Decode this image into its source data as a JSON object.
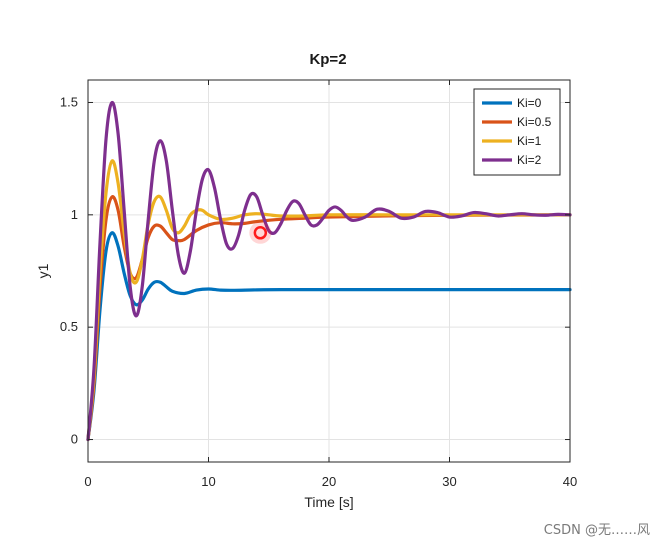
{
  "chart_data": {
    "type": "line",
    "title": "Kp=2",
    "xlabel": "Time [s]",
    "ylabel": "y1",
    "xlim": [
      0,
      40
    ],
    "ylim": [
      -0.1,
      1.6
    ],
    "xticks": [
      0,
      10,
      20,
      30,
      40
    ],
    "yticks": [
      0,
      0.5,
      1,
      1.5
    ],
    "xtick_labels": [
      "0",
      "10",
      "20",
      "30",
      "40"
    ],
    "ytick_labels": [
      "0",
      "0.5",
      "1",
      "1.5"
    ],
    "grid": true,
    "legend_position": "top-right",
    "marker_point": {
      "x": 14.3,
      "y": 0.92,
      "color": "#ff1a1a"
    },
    "series": [
      {
        "name": "Ki=0",
        "color": "#0072bd",
        "x": [
          0,
          0.5,
          1,
          1.5,
          2,
          2.5,
          3,
          3.5,
          4,
          4.5,
          5,
          5.5,
          6,
          6.5,
          7,
          8,
          9,
          10,
          11,
          12,
          14,
          16,
          20,
          25,
          30,
          35,
          40
        ],
        "y": [
          0,
          0.22,
          0.58,
          0.84,
          0.92,
          0.86,
          0.74,
          0.64,
          0.6,
          0.62,
          0.67,
          0.7,
          0.7,
          0.68,
          0.66,
          0.65,
          0.665,
          0.67,
          0.665,
          0.664,
          0.666,
          0.667,
          0.667,
          0.667,
          0.667,
          0.667,
          0.667
        ]
      },
      {
        "name": "Ki=0.5",
        "color": "#d95319",
        "x": [
          0,
          0.5,
          1,
          1.5,
          2,
          2.5,
          3,
          3.5,
          4,
          4.5,
          5,
          5.5,
          6,
          6.5,
          7,
          7.5,
          8,
          9,
          10,
          11,
          12,
          13,
          14,
          16,
          18,
          20,
          25,
          30,
          35,
          40
        ],
        "y": [
          0,
          0.25,
          0.68,
          0.98,
          1.08,
          1.02,
          0.86,
          0.74,
          0.72,
          0.8,
          0.9,
          0.95,
          0.95,
          0.92,
          0.89,
          0.885,
          0.89,
          0.93,
          0.955,
          0.965,
          0.96,
          0.962,
          0.97,
          0.98,
          0.985,
          0.99,
          0.995,
          0.998,
          0.999,
          1.0
        ]
      },
      {
        "name": "Ki=1",
        "color": "#edb120",
        "x": [
          0,
          0.5,
          1,
          1.5,
          2,
          2.5,
          3,
          3.5,
          4,
          4.5,
          5,
          5.5,
          6,
          6.5,
          7,
          7.5,
          8,
          8.5,
          9,
          9.5,
          10,
          11,
          12,
          13,
          14,
          15,
          16,
          18,
          20,
          25,
          30,
          35,
          40
        ],
        "y": [
          0,
          0.28,
          0.75,
          1.1,
          1.24,
          1.14,
          0.92,
          0.74,
          0.7,
          0.8,
          0.96,
          1.06,
          1.08,
          1.02,
          0.94,
          0.92,
          0.95,
          1.0,
          1.02,
          1.02,
          1.0,
          0.98,
          0.985,
          1.0,
          1.005,
          1.0,
          0.995,
          0.995,
          1.0,
          1.0,
          1.0,
          1.0,
          1.0
        ]
      },
      {
        "name": "Ki=2",
        "color": "#7e2f8e",
        "x": [
          0,
          0.5,
          1,
          1.5,
          2,
          2.5,
          3,
          3.5,
          4,
          4.5,
          5,
          5.5,
          6,
          6.5,
          7,
          7.5,
          8,
          8.5,
          9,
          9.5,
          10,
          10.5,
          11,
          11.5,
          12,
          12.5,
          13,
          13.5,
          14,
          14.5,
          15,
          15.5,
          16,
          16.5,
          17,
          17.5,
          18,
          18.5,
          19,
          19.5,
          20,
          20.5,
          21,
          21.5,
          22,
          23,
          24,
          25,
          26,
          27,
          28,
          29,
          30,
          31,
          32,
          33,
          34,
          35,
          36,
          37,
          38,
          39,
          40
        ],
        "y": [
          0,
          0.32,
          0.88,
          1.34,
          1.5,
          1.36,
          1.02,
          0.68,
          0.55,
          0.68,
          0.98,
          1.24,
          1.33,
          1.24,
          1.02,
          0.82,
          0.74,
          0.84,
          1.02,
          1.16,
          1.2,
          1.12,
          0.98,
          0.87,
          0.85,
          0.91,
          1.02,
          1.09,
          1.08,
          1.0,
          0.93,
          0.92,
          0.96,
          1.02,
          1.06,
          1.05,
          1.0,
          0.955,
          0.955,
          0.985,
          1.02,
          1.035,
          1.02,
          0.99,
          0.975,
          0.99,
          1.025,
          1.015,
          0.985,
          0.99,
          1.015,
          1.01,
          0.99,
          0.995,
          1.01,
          1.005,
          0.995,
          1.0,
          1.005,
          1.0,
          0.998,
          1.002,
          1.0
        ]
      }
    ]
  },
  "watermark": {
    "text": "CSDN @无……风"
  }
}
